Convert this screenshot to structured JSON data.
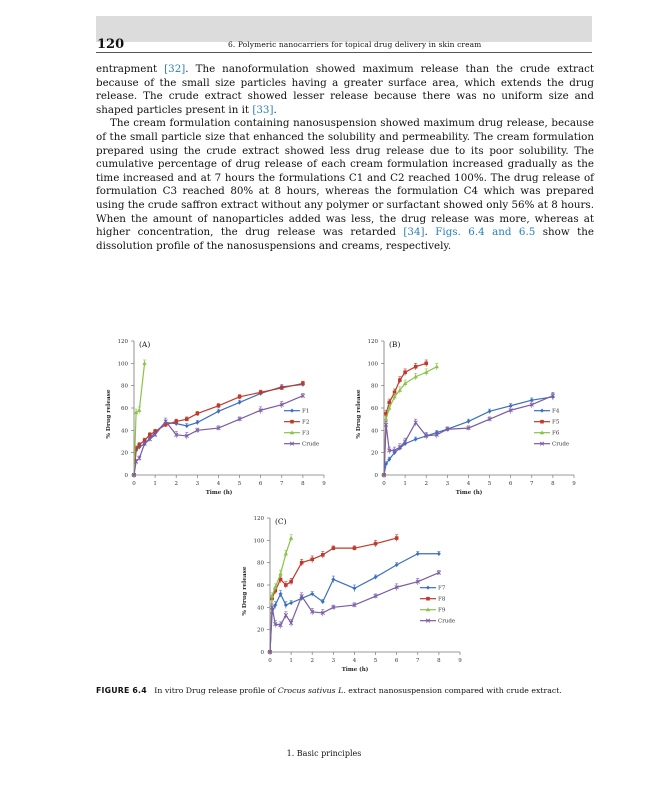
{
  "header": {
    "page_number": "120",
    "running_head": "6. Polymeric nanocarriers for topical drug delivery in skin cream"
  },
  "body": {
    "p1_a": "entrapment ",
    "p1_cite1": "[32]",
    "p1_b": ". The nanoformulation showed maximum release than the crude extract because of the small size particles having a greater surface area, which extends the drug release. The crude extract showed lesser release because there was no uniform size and shaped particles present in it ",
    "p1_cite2": "[33]",
    "p1_c": ".",
    "p2_a": "The cream formulation containing nanosuspension showed maximum drug release, because of the small particle size that enhanced the solubility and permeability. The cream formulation prepared using the crude extract showed less drug release due to its poor solubility. The cumulative percentage of drug release of each cream formulation increased gradually as the time increased and at 7 hours the formulations C1 and C2 reached 100%. The drug release of formulation C3 reached 80% at 8 hours, whereas the formulation C4 which was prepared using the crude saffron extract without any polymer or surfactant showed only 56% at 8 hours. When the amount of nanoparticles added was less, the drug release was more, whereas at higher concentration, the drug release was retarded ",
    "p2_cite1": "[34]",
    "p2_b": ". ",
    "p2_cite2": "Figs. 6.4 and 6.5",
    "p2_c": " show the dissolution profile of the nanosuspensions and creams, respectively."
  },
  "figure": {
    "caption_label": "FIGURE 6.4",
    "caption_text_a": "In vitro Drug release profile of ",
    "caption_italic": "Crocus sativus L.",
    "caption_text_b": " extract nanosuspension compared with crude extract."
  },
  "footer": {
    "text": "1. Basic principles"
  },
  "chart_data": [
    {
      "type": "line",
      "panel_label": "(A)",
      "xlabel": "Time (h)",
      "ylabel": "% Drug release",
      "xlim": [
        0,
        9
      ],
      "ylim": [
        0,
        120
      ],
      "xticks": [
        "0",
        "1",
        "2",
        "3",
        "4",
        "5",
        "6",
        "7",
        "8",
        "9"
      ],
      "yticks": [
        "0",
        "20",
        "40",
        "60",
        "80",
        "100",
        "120"
      ],
      "legend_position": "right",
      "series": [
        {
          "name": "F1",
          "color": "#3a6fbf",
          "marker": "diamond",
          "x": [
            0,
            0.1,
            0.25,
            0.5,
            0.75,
            1,
            1.5,
            2,
            2.5,
            3,
            4,
            5,
            6,
            7,
            8
          ],
          "y": [
            0,
            22,
            25,
            28,
            33,
            38,
            47,
            46,
            44,
            47,
            57,
            65,
            73,
            79,
            81
          ],
          "err": [
            0,
            2,
            2,
            2,
            2,
            2,
            2,
            2,
            2,
            2,
            2,
            2,
            2,
            2,
            2
          ]
        },
        {
          "name": "F2",
          "color": "#c0392b",
          "marker": "square",
          "x": [
            0,
            0.1,
            0.25,
            0.5,
            0.75,
            1,
            1.5,
            2,
            2.5,
            3,
            4,
            5,
            6,
            7,
            8
          ],
          "y": [
            0,
            24,
            27,
            31,
            36,
            39,
            45,
            48,
            50,
            55,
            62,
            70,
            74,
            78,
            82
          ],
          "err": [
            0,
            2,
            2,
            2,
            2,
            2,
            2,
            2,
            2,
            2,
            2,
            2,
            2,
            2,
            2
          ]
        },
        {
          "name": "F3",
          "color": "#8bc34a",
          "marker": "triangle",
          "x": [
            0,
            0.1,
            0.25,
            0.5
          ],
          "y": [
            0,
            56,
            58,
            100
          ],
          "err": [
            0,
            3,
            3,
            3
          ]
        },
        {
          "name": "Crude",
          "color": "#7b5ba6",
          "marker": "x",
          "x": [
            0,
            0.1,
            0.25,
            0.5,
            0.75,
            1,
            1.5,
            2,
            2.5,
            3,
            4,
            5,
            6,
            7,
            8
          ],
          "y": [
            0,
            12,
            15,
            28,
            32,
            36,
            48,
            36,
            35,
            40,
            42,
            50,
            58,
            63,
            71
          ],
          "err": [
            0,
            2,
            2,
            2,
            2,
            2,
            3,
            3,
            3,
            2,
            2,
            2,
            3,
            3,
            2
          ]
        }
      ]
    },
    {
      "type": "line",
      "panel_label": "(B)",
      "xlabel": "Time (h)",
      "ylabel": "% Drug release",
      "xlim": [
        0,
        9
      ],
      "ylim": [
        0,
        120
      ],
      "xticks": [
        "0",
        "1",
        "2",
        "3",
        "4",
        "5",
        "6",
        "7",
        "8",
        "9"
      ],
      "yticks": [
        "0",
        "20",
        "40",
        "60",
        "80",
        "100",
        "120"
      ],
      "legend_position": "right",
      "series": [
        {
          "name": "F4",
          "color": "#3a6fbf",
          "marker": "diamond",
          "x": [
            0,
            0.1,
            0.25,
            0.5,
            0.75,
            1,
            1.5,
            2,
            2.5,
            3,
            4,
            5,
            6,
            7,
            8
          ],
          "y": [
            0,
            10,
            14,
            20,
            24,
            28,
            32,
            35,
            38,
            41,
            48,
            57,
            62,
            67,
            70
          ],
          "err": [
            0,
            2,
            2,
            2,
            2,
            2,
            2,
            2,
            2,
            2,
            2,
            2,
            2,
            2,
            3
          ]
        },
        {
          "name": "F5",
          "color": "#c0392b",
          "marker": "square",
          "x": [
            0,
            0.1,
            0.25,
            0.5,
            0.75,
            1,
            1.5,
            2
          ],
          "y": [
            0,
            55,
            65,
            74,
            85,
            92,
            97,
            100
          ],
          "err": [
            0,
            3,
            3,
            3,
            3,
            3,
            3,
            3
          ]
        },
        {
          "name": "F6",
          "color": "#8bc34a",
          "marker": "triangle",
          "x": [
            0,
            0.1,
            0.25,
            0.5,
            0.75,
            1,
            1.5,
            2,
            2.5
          ],
          "y": [
            0,
            50,
            60,
            70,
            76,
            82,
            88,
            92,
            97
          ],
          "err": [
            0,
            3,
            3,
            3,
            3,
            3,
            3,
            3,
            3
          ]
        },
        {
          "name": "Crude",
          "color": "#7b5ba6",
          "marker": "x",
          "x": [
            0,
            0.1,
            0.25,
            0.5,
            0.75,
            1,
            1.5,
            2,
            2.5,
            3,
            4,
            5,
            6,
            7,
            8
          ],
          "y": [
            0,
            45,
            22,
            22,
            25,
            30,
            47,
            35,
            36,
            41,
            42,
            50,
            58,
            63,
            71
          ],
          "err": [
            0,
            3,
            3,
            3,
            3,
            3,
            3,
            3,
            3,
            2,
            2,
            2,
            3,
            3,
            3
          ]
        }
      ]
    },
    {
      "type": "line",
      "panel_label": "(C)",
      "xlabel": "Time (h)",
      "ylabel": "% Drug release",
      "xlim": [
        0,
        9
      ],
      "ylim": [
        0,
        120
      ],
      "xticks": [
        "0",
        "1",
        "2",
        "3",
        "4",
        "5",
        "6",
        "7",
        "8",
        "9"
      ],
      "yticks": [
        "0",
        "20",
        "40",
        "60",
        "80",
        "100",
        "120"
      ],
      "legend_position": "right",
      "series": [
        {
          "name": "F7",
          "color": "#3a6fbf",
          "marker": "diamond",
          "x": [
            0,
            0.1,
            0.25,
            0.5,
            0.75,
            1,
            1.5,
            2,
            2.5,
            3,
            4,
            5,
            6,
            7,
            8
          ],
          "y": [
            0,
            35,
            42,
            52,
            42,
            44,
            48,
            52,
            45,
            65,
            57,
            67,
            78,
            88,
            88
          ],
          "err": [
            0,
            3,
            3,
            3,
            3,
            2,
            2,
            2,
            2,
            3,
            3,
            2,
            2,
            2,
            2
          ]
        },
        {
          "name": "F8",
          "color": "#c0392b",
          "marker": "square",
          "x": [
            0,
            0.1,
            0.25,
            0.5,
            0.75,
            1,
            1.5,
            2,
            2.5,
            3,
            4,
            5,
            6
          ],
          "y": [
            0,
            48,
            55,
            65,
            60,
            63,
            80,
            83,
            87,
            93,
            93,
            97,
            102
          ],
          "err": [
            0,
            3,
            3,
            3,
            3,
            3,
            3,
            3,
            3,
            2,
            2,
            3,
            3
          ]
        },
        {
          "name": "F9",
          "color": "#8bc34a",
          "marker": "triangle",
          "x": [
            0,
            0.1,
            0.25,
            0.5,
            0.75,
            1
          ],
          "y": [
            0,
            50,
            58,
            70,
            88,
            102
          ],
          "err": [
            0,
            3,
            3,
            3,
            3,
            3
          ]
        },
        {
          "name": "Crude",
          "color": "#7b5ba6",
          "marker": "x",
          "x": [
            0,
            0.1,
            0.25,
            0.5,
            0.75,
            1,
            1.5,
            2,
            2.5,
            3,
            4,
            5,
            6,
            7,
            8
          ],
          "y": [
            0,
            40,
            25,
            24,
            33,
            26,
            50,
            36,
            35,
            40,
            42,
            50,
            58,
            63,
            71
          ],
          "err": [
            0,
            3,
            3,
            3,
            3,
            3,
            3,
            3,
            3,
            2,
            2,
            2,
            3,
            3,
            2
          ]
        }
      ]
    }
  ]
}
